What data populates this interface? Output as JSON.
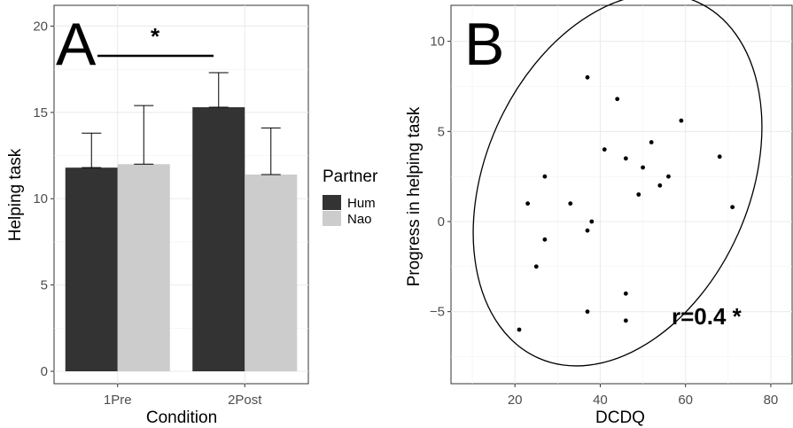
{
  "chart_data": [
    {
      "type": "bar",
      "panel_label": "A",
      "xlabel": "Condition",
      "ylabel": "Helping task",
      "categories": [
        "1Pre",
        "2Post"
      ],
      "ylim": [
        0,
        21
      ],
      "yticks": [
        0,
        5,
        10,
        15,
        20
      ],
      "series": [
        {
          "name": "Hum",
          "color": "#333333",
          "values": [
            11.8,
            15.3
          ],
          "error_upper": [
            13.8,
            17.3
          ]
        },
        {
          "name": "Nao",
          "color": "#cccccc",
          "values": [
            12.0,
            11.4
          ],
          "error_upper": [
            15.4,
            14.1
          ]
        }
      ],
      "legend": {
        "title": "Partner",
        "position": "right",
        "entries": [
          "Hum",
          "Nao"
        ]
      },
      "significance": {
        "label": "*"
      },
      "grid": true
    },
    {
      "type": "scatter",
      "panel_label": "B",
      "xlabel": "DCDQ",
      "ylabel": "Progress in helping task",
      "xlim": [
        5,
        85
      ],
      "ylim": [
        -9,
        12
      ],
      "xticks": [
        20,
        40,
        60,
        80
      ],
      "yticks": [
        -5,
        0,
        5,
        10
      ],
      "points": [
        {
          "x": 21,
          "y": -6
        },
        {
          "x": 23,
          "y": 1
        },
        {
          "x": 25,
          "y": -2.5
        },
        {
          "x": 27,
          "y": 2.5
        },
        {
          "x": 27,
          "y": -1
        },
        {
          "x": 33,
          "y": 1
        },
        {
          "x": 37,
          "y": 8
        },
        {
          "x": 37,
          "y": -0.5
        },
        {
          "x": 37,
          "y": -5
        },
        {
          "x": 38,
          "y": 0
        },
        {
          "x": 41,
          "y": 4
        },
        {
          "x": 44,
          "y": 6.8
        },
        {
          "x": 46,
          "y": 3.5
        },
        {
          "x": 46,
          "y": -4
        },
        {
          "x": 46,
          "y": -5.5
        },
        {
          "x": 49,
          "y": 1.5
        },
        {
          "x": 50,
          "y": 3
        },
        {
          "x": 52,
          "y": 4.4
        },
        {
          "x": 54,
          "y": 2
        },
        {
          "x": 56,
          "y": 2.5
        },
        {
          "x": 59,
          "y": 5.6
        },
        {
          "x": 68,
          "y": 3.6
        },
        {
          "x": 71,
          "y": 0.8
        }
      ],
      "annotation": "r=0.4 *",
      "grid": true
    }
  ]
}
